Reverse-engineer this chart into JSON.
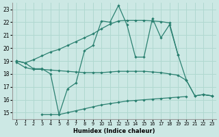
{
  "xlabel": "Humidex (Indice chaleur)",
  "bg_color": "#cce8e4",
  "grid_color": "#b0d8d0",
  "line_color": "#2a8070",
  "x_values": [
    0,
    1,
    2,
    3,
    4,
    5,
    6,
    7,
    8,
    9,
    10,
    11,
    12,
    13,
    14,
    15,
    16,
    17,
    18,
    19,
    20,
    21,
    22,
    23
  ],
  "line_upper": [
    19.0,
    18.85,
    19.1,
    19.4,
    19.7,
    19.9,
    20.2,
    20.5,
    20.8,
    21.1,
    21.5,
    21.85,
    22.1,
    22.15,
    22.15,
    22.15,
    22.1,
    22.05,
    21.95,
    19.5,
    null,
    null,
    null,
    null
  ],
  "line_jagged": [
    19.0,
    18.85,
    18.4,
    18.4,
    18.0,
    14.85,
    16.85,
    17.3,
    19.8,
    20.2,
    22.1,
    22.0,
    23.3,
    21.8,
    19.3,
    19.3,
    22.3,
    20.8,
    21.8,
    19.5,
    17.5,
    16.3,
    16.4,
    16.3
  ],
  "line_middle": [
    18.9,
    18.5,
    18.35,
    18.35,
    18.3,
    18.25,
    18.2,
    18.15,
    18.1,
    18.1,
    18.1,
    18.15,
    18.2,
    18.2,
    18.2,
    18.2,
    18.15,
    18.1,
    18.0,
    17.9,
    17.5,
    16.3,
    16.4,
    16.3
  ],
  "line_lower": [
    19.0,
    null,
    null,
    14.85,
    14.85,
    14.85,
    15.0,
    15.15,
    15.3,
    15.45,
    15.6,
    15.7,
    15.8,
    15.9,
    15.95,
    16.0,
    16.05,
    16.1,
    16.15,
    16.2,
    16.25,
    null,
    16.4,
    16.3
  ],
  "ylim": [
    14.5,
    23.5
  ],
  "xlim": [
    -0.5,
    23.5
  ],
  "yticks": [
    15,
    16,
    17,
    18,
    19,
    20,
    21,
    22,
    23
  ],
  "xticks": [
    0,
    1,
    2,
    3,
    4,
    5,
    6,
    7,
    8,
    9,
    10,
    11,
    12,
    13,
    14,
    15,
    16,
    17,
    18,
    19,
    20,
    21,
    22,
    23
  ]
}
